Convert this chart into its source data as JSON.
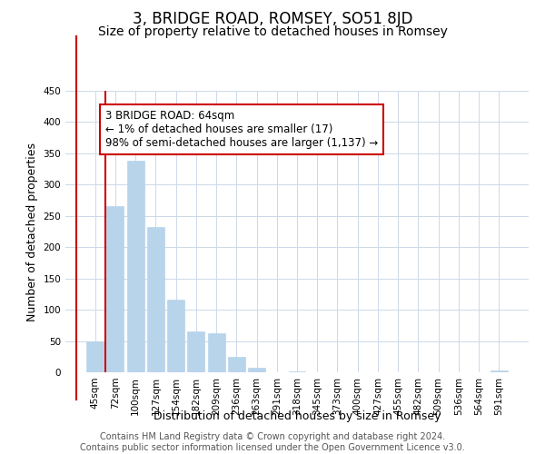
{
  "title": "3, BRIDGE ROAD, ROMSEY, SO51 8JD",
  "subtitle": "Size of property relative to detached houses in Romsey",
  "xlabel": "Distribution of detached houses by size in Romsey",
  "ylabel": "Number of detached properties",
  "bar_labels": [
    "45sqm",
    "72sqm",
    "100sqm",
    "127sqm",
    "154sqm",
    "182sqm",
    "209sqm",
    "236sqm",
    "263sqm",
    "291sqm",
    "318sqm",
    "345sqm",
    "373sqm",
    "400sqm",
    "427sqm",
    "455sqm",
    "482sqm",
    "509sqm",
    "536sqm",
    "564sqm",
    "591sqm"
  ],
  "bar_values": [
    50,
    265,
    338,
    232,
    116,
    65,
    62,
    25,
    7,
    0,
    2,
    0,
    0,
    0,
    0,
    0,
    0,
    0,
    0,
    0,
    3
  ],
  "bar_color": "#b8d4ea",
  "highlight_bar_index": 0,
  "highlight_line_color": "#cc0000",
  "annotation_text": "3 BRIDGE ROAD: 64sqm\n← 1% of detached houses are smaller (17)\n98% of semi-detached houses are larger (1,137) →",
  "annotation_box_color": "#ffffff",
  "annotation_box_edge_color": "#cc0000",
  "ylim": [
    0,
    450
  ],
  "yticks": [
    0,
    50,
    100,
    150,
    200,
    250,
    300,
    350,
    400,
    450
  ],
  "footer_line1": "Contains HM Land Registry data © Crown copyright and database right 2024.",
  "footer_line2": "Contains public sector information licensed under the Open Government Licence v3.0.",
  "bg_color": "#ffffff",
  "grid_color": "#cdd8e8",
  "title_fontsize": 12,
  "subtitle_fontsize": 10,
  "axis_label_fontsize": 9,
  "tick_fontsize": 7.5,
  "annotation_fontsize": 8.5,
  "footer_fontsize": 7
}
